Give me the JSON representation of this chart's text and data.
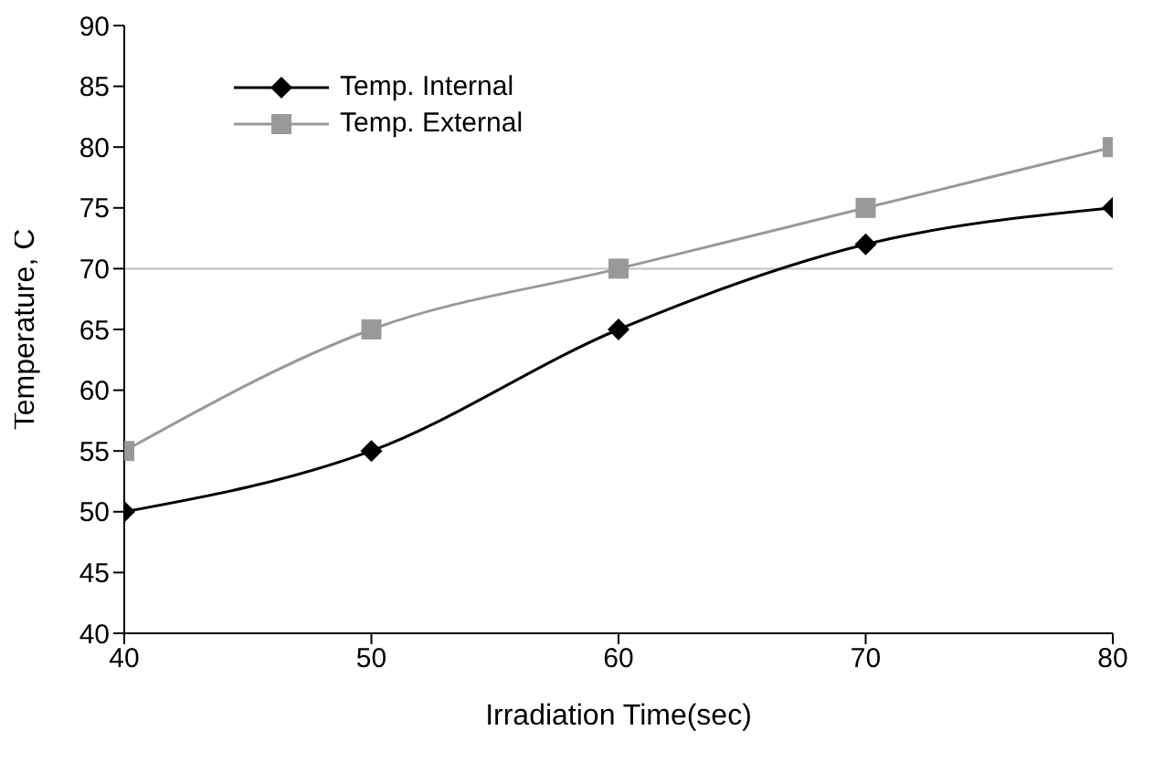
{
  "chart_data": {
    "type": "line",
    "xlabel": "Irradiation Time(sec)",
    "ylabel": "Temperature, C",
    "x": [
      40,
      50,
      60,
      70,
      80
    ],
    "series": [
      {
        "name": "Temp. Internal",
        "color": "#000000",
        "marker": "diamond",
        "values": [
          50,
          55,
          65,
          72,
          75
        ]
      },
      {
        "name": "Temp. External",
        "color": "#999999",
        "marker": "square",
        "values": [
          55,
          65,
          70,
          75,
          80
        ]
      }
    ],
    "xlim": [
      40,
      80
    ],
    "xticks": [
      40,
      50,
      60,
      70,
      80
    ],
    "ylim": [
      40,
      90
    ],
    "yticks": [
      40,
      45,
      50,
      55,
      60,
      65,
      70,
      75,
      80,
      85,
      90
    ],
    "ref_lines": [
      {
        "axis": "y",
        "value": 70,
        "color": "#c0c0c0"
      }
    ],
    "grid": false,
    "legend": "top left",
    "line_style": "solid"
  }
}
